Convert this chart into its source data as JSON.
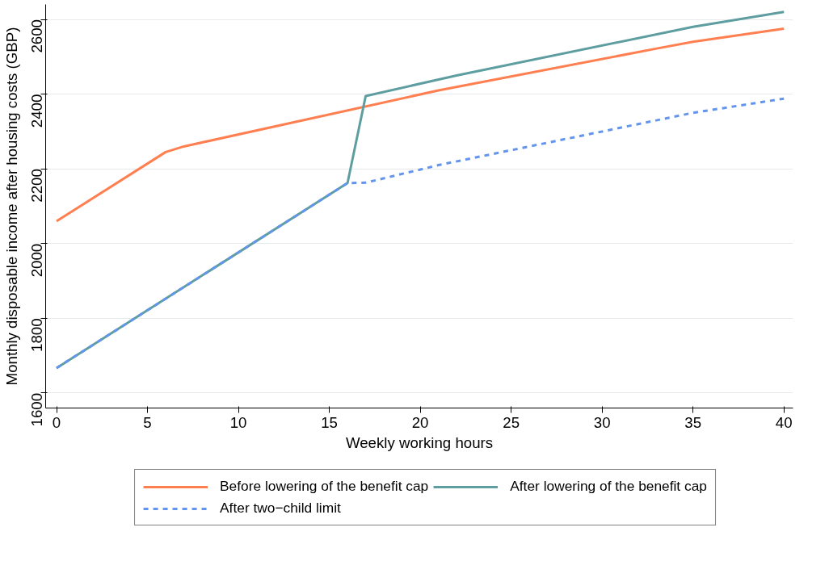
{
  "chart_data": {
    "type": "line",
    "xlabel": "Weekly working hours",
    "ylabel": "Monthly disposable income after housing costs (GBP)",
    "xlim": [
      -0.6,
      40.5
    ],
    "xticks": [
      0,
      5,
      10,
      15,
      20,
      25,
      30,
      35,
      40
    ],
    "ylim": [
      1560,
      2640
    ],
    "yticks": [
      1600,
      1800,
      2000,
      2200,
      2400,
      2600
    ],
    "grid": "y",
    "legend": "bottom",
    "marker": "none",
    "series": [
      {
        "name": "Before lowering of the benefit cap",
        "color": "#ff7f50",
        "line_style": "solid",
        "x": [
          0,
          6,
          7,
          21,
          33,
          35,
          40
        ],
        "values": [
          2060,
          2245,
          2260,
          2410,
          2522,
          2540,
          2575
        ]
      },
      {
        "name": "After lowering of the benefit cap",
        "color": "#5f9ea0",
        "line_style": "solid",
        "x": [
          0,
          16,
          17,
          22,
          35,
          40
        ],
        "values": [
          1667,
          2162,
          2395,
          2450,
          2580,
          2620
        ]
      },
      {
        "name": "After two−child limit",
        "color": "#6495ed",
        "line_style": "dashed",
        "x": [
          0,
          16,
          17,
          21,
          35,
          40
        ],
        "values": [
          1667,
          2162,
          2163,
          2210,
          2350,
          2388
        ]
      }
    ]
  }
}
